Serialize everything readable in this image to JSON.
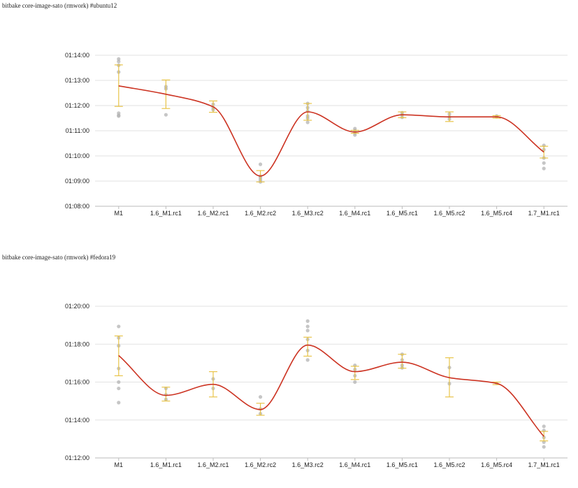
{
  "colors": {
    "trend_line": "#cc3322",
    "error_bar": "#e8c44a",
    "run_point": "#b3b3b3",
    "grid": "#e2e2e2",
    "axis": "#bbbbbb"
  },
  "chart_data": [
    {
      "type": "line",
      "title": "bitbake core-image-sato (rmwork) #ubuntu12",
      "xlabel": "",
      "ylabel": "",
      "ylim": [
        "01:08:00",
        "01:14:00"
      ],
      "y_ticks": [
        "01:08:00",
        "01:09:00",
        "01:10:00",
        "01:11:00",
        "01:12:00",
        "01:13:00",
        "01:14:00"
      ],
      "grid": true,
      "categories": [
        "M1",
        "1.6_M1.rc1",
        "1.6_M2.rc1",
        "1.6_M2.rc2",
        "1.6_M3.rc2",
        "1.6_M4.rc1",
        "1.6_M5.rc1",
        "1.6_M5.rc2",
        "1.6_M5.rc4",
        "1.7_M1.rc1"
      ],
      "mean": [
        "01:12:47",
        "01:12:27",
        "01:11:57",
        "01:09:12",
        "01:11:45",
        "01:10:57",
        "01:11:38",
        "01:11:33",
        "01:11:33",
        "01:10:09"
      ],
      "error_low": [
        "01:11:58",
        "01:11:53",
        "01:11:44",
        "01:08:58",
        "01:11:25",
        "01:10:54",
        "01:11:31",
        "01:11:22",
        "01:11:30",
        "01:09:55"
      ],
      "error_high": [
        "01:13:37",
        "01:13:01",
        "01:12:11",
        "01:09:25",
        "01:12:05",
        "01:11:01",
        "01:11:45",
        "01:11:45",
        "01:11:36",
        "01:10:23"
      ],
      "runs": [
        [
          "01:13:51",
          "01:13:45",
          "01:13:36",
          "01:13:20",
          "01:11:42",
          "01:11:37",
          "01:11:35"
        ],
        [
          "01:12:45",
          "01:12:40",
          "01:11:38"
        ],
        [
          "01:12:03",
          "01:11:55",
          "01:11:50"
        ],
        [
          "01:09:40",
          "01:09:12",
          "01:09:08",
          "01:09:03",
          "01:08:58"
        ],
        [
          "01:12:05",
          "01:11:55",
          "01:11:47",
          "01:11:35",
          "01:11:30",
          "01:11:20"
        ],
        [
          "01:11:05",
          "01:11:00",
          "01:10:55",
          "01:10:50"
        ],
        [
          "01:11:43",
          "01:11:38",
          "01:11:32"
        ],
        [
          "01:11:40",
          "01:11:33",
          "01:11:28"
        ],
        [
          "01:11:35",
          "01:11:33"
        ],
        [
          "01:10:25",
          "01:10:15",
          "01:09:55",
          "01:09:43",
          "01:09:30"
        ]
      ]
    },
    {
      "type": "line",
      "title": "bitbake core-image-sato (rmwork) #fedora19",
      "xlabel": "",
      "ylabel": "",
      "ylim": [
        "01:12:00",
        "01:20:00"
      ],
      "y_ticks": [
        "01:12:00",
        "01:14:00",
        "01:16:00",
        "01:18:00",
        "01:20:00"
      ],
      "grid": true,
      "categories": [
        "M1",
        "1.6_M1.rc1",
        "1.6_M2.rc1",
        "1.6_M2.rc2",
        "1.6_M3.rc2",
        "1.6_M4.rc1",
        "1.6_M5.rc1",
        "1.6_M5.rc2",
        "1.6_M5.rc4",
        "1.7_M1.rc1"
      ],
      "mean": [
        "01:17:24",
        "01:15:18",
        "01:15:53",
        "01:14:33",
        "01:17:57",
        "01:16:33",
        "01:17:03",
        "01:16:14",
        "01:15:56",
        "01:13:08"
      ],
      "error_low": [
        "01:16:20",
        "01:15:00",
        "01:15:13",
        "01:14:15",
        "01:17:22",
        "01:16:08",
        "01:16:44",
        "01:15:13",
        "01:15:52",
        "01:12:54"
      ],
      "error_high": [
        "01:18:26",
        "01:15:44",
        "01:16:33",
        "01:14:53",
        "01:18:22",
        "01:16:50",
        "01:17:28",
        "01:17:17",
        "01:16:00",
        "01:13:24"
      ],
      "runs": [
        [
          "01:18:56",
          "01:18:20",
          "01:17:55",
          "01:16:43",
          "01:16:00",
          "01:15:40",
          "01:14:55"
        ],
        [
          "01:15:40",
          "01:15:20",
          "01:15:05"
        ],
        [
          "01:16:10",
          "01:15:40"
        ],
        [
          "01:15:13",
          "01:14:35",
          "01:14:20"
        ],
        [
          "01:19:13",
          "01:18:56",
          "01:18:43",
          "01:18:15",
          "01:17:40",
          "01:17:10"
        ],
        [
          "01:16:53",
          "01:16:40",
          "01:16:20",
          "01:16:00"
        ],
        [
          "01:17:28",
          "01:17:10",
          "01:16:53",
          "01:16:45"
        ],
        [
          "01:16:46",
          "01:15:55"
        ],
        [
          "01:15:56"
        ],
        [
          "01:13:40",
          "01:13:27",
          "01:13:05",
          "01:12:50",
          "01:12:35"
        ]
      ]
    }
  ]
}
